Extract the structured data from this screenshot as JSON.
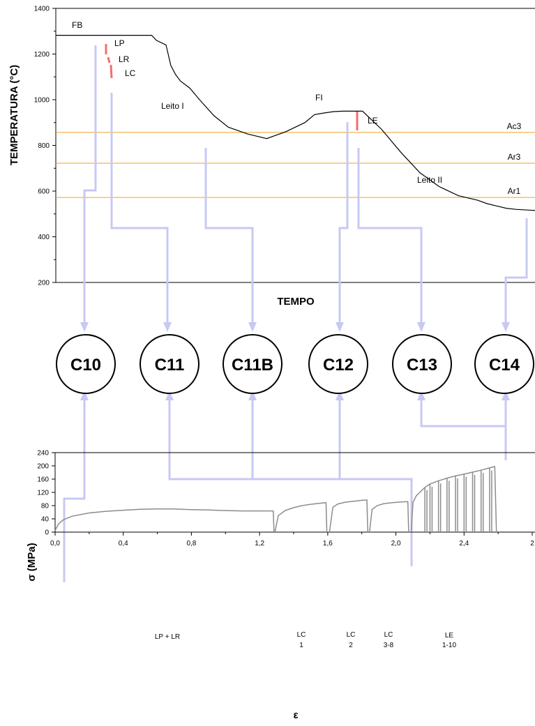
{
  "colors": {
    "connector": "#c7c9f3",
    "curve_top": "#000000",
    "curve_bottom": "#8c8c8c",
    "transformation_line": "#f0a020",
    "deformation_mark": "#f07070"
  },
  "chart_data": [
    {
      "type": "line",
      "xlabel": "TEMPO",
      "ylabel": "TEMPERATURA (°C)",
      "ylim": [
        200,
        1400
      ],
      "yticks": [
        200,
        400,
        600,
        800,
        1000,
        1200,
        1400
      ],
      "grid": false,
      "xlim": [
        0,
        100
      ],
      "series": [
        {
          "x": [
            0,
            4,
            8,
            12,
            16,
            20,
            21,
            23,
            24,
            25,
            26,
            28,
            30,
            33,
            36,
            40,
            44,
            48,
            52,
            54,
            56,
            58,
            60,
            64,
            68,
            72,
            76,
            80,
            84,
            88,
            90,
            92,
            94,
            96,
            100
          ],
          "y": [
            1282,
            1282,
            1282,
            1282,
            1282,
            1282,
            1260,
            1240,
            1150,
            1110,
            1082,
            1050,
            1000,
            930,
            880,
            850,
            830,
            860,
            900,
            935,
            942,
            948,
            950,
            950,
            870,
            770,
            680,
            620,
            580,
            560,
            545,
            535,
            525,
            520,
            515
          ]
        }
      ],
      "reference_lines": [
        {
          "label": "Ac3",
          "y": 857
        },
        {
          "label": "Ar3",
          "y": 722
        },
        {
          "label": "Ar1",
          "y": 572
        }
      ],
      "annotations": [
        "FB",
        "LP",
        "LR",
        "LC",
        "Leito I",
        "FI",
        "LE",
        "Leito II"
      ]
    },
    {
      "type": "line",
      "xlabel": "ε",
      "ylabel": "σ (MPa)",
      "xlim": [
        0,
        2.8
      ],
      "ylim": [
        0,
        240
      ],
      "xtick_labels": [
        "0,0",
        "0,4",
        "0,8",
        "1,2",
        "1,6",
        "2,0",
        "2,4",
        "2"
      ],
      "yticks": [
        0,
        40,
        80,
        120,
        160,
        200,
        240
      ],
      "grid": false,
      "series": [
        {
          "name": "LP + LR",
          "x": [
            0,
            0.02,
            0.05,
            0.1,
            0.2,
            0.3,
            0.4,
            0.5,
            0.6,
            0.7,
            0.8,
            0.9,
            1.0,
            1.1,
            1.2,
            1.28
          ],
          "y": [
            5,
            25,
            38,
            48,
            58,
            63,
            66,
            69,
            70,
            70,
            68,
            67,
            65,
            64,
            64,
            64
          ]
        },
        {
          "name": "LC 1",
          "x": [
            1.29,
            1.31,
            1.35,
            1.4,
            1.45,
            1.5,
            1.55,
            1.59
          ],
          "y": [
            0,
            50,
            65,
            74,
            80,
            84,
            87,
            89
          ]
        },
        {
          "name": "LC 2",
          "x": [
            1.61,
            1.63,
            1.66,
            1.7,
            1.75,
            1.8,
            1.83
          ],
          "y": [
            0,
            75,
            85,
            90,
            93,
            96,
            97
          ]
        },
        {
          "name": "LC 3-8",
          "x": [
            1.845,
            1.86,
            1.89,
            1.93,
            1.98,
            2.03,
            2.07
          ],
          "y": [
            0,
            68,
            80,
            86,
            89,
            91,
            92
          ]
        },
        {
          "name": "LE 1-10",
          "x": [
            2.09,
            2.1,
            2.12,
            2.14,
            2.17,
            2.2,
            2.25,
            2.3,
            2.35,
            2.4,
            2.45,
            2.5,
            2.55,
            2.58
          ],
          "y": [
            0,
            90,
            110,
            120,
            135,
            145,
            155,
            163,
            170,
            175,
            181,
            187,
            194,
            198
          ]
        }
      ],
      "region_labels": [
        "LP + LR",
        "LC",
        "1",
        "LC",
        "2",
        "LC",
        "3-8",
        "LE",
        "1-10"
      ]
    }
  ],
  "nodes": [
    "C10",
    "C11",
    "C11B",
    "C12",
    "C13",
    "C14"
  ]
}
